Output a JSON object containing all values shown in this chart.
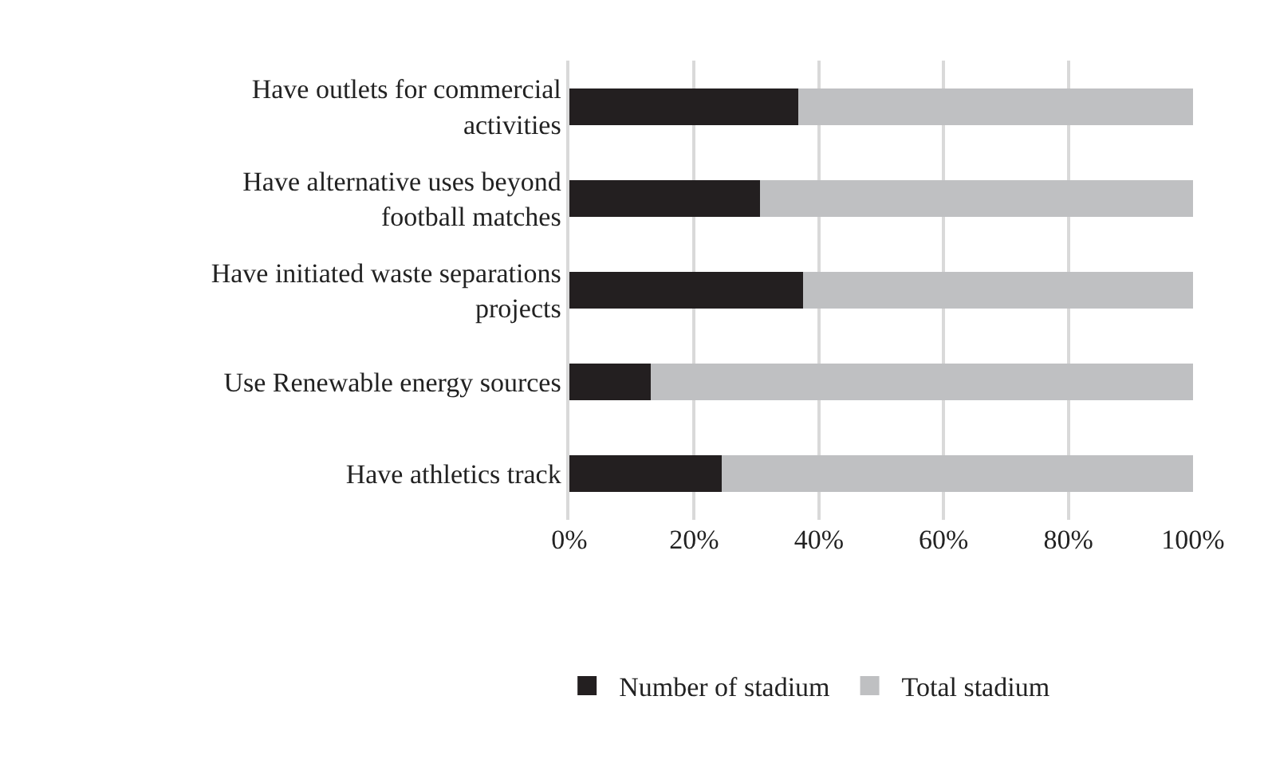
{
  "chart_data": {
    "type": "bar",
    "orientation": "horizontal",
    "stacked": true,
    "categories": [
      "Have outlets for commercial\nactivities",
      "Have alternative uses beyond\nfootball matches",
      "Have initiated waste separations\nprojects",
      "Use Renewable energy sources",
      "Have athletics track"
    ],
    "series": [
      {
        "name": "Number of stadium",
        "color": "#231f20",
        "values": [
          36.7,
          30.6,
          37.5,
          13.0,
          24.4
        ]
      },
      {
        "name": "Total stadium",
        "color": "#bfc0c2",
        "values": [
          63.3,
          69.4,
          62.5,
          87.0,
          75.6
        ]
      }
    ],
    "xlim": [
      0,
      100
    ],
    "xticks": [
      {
        "value": 0,
        "label": "0%"
      },
      {
        "value": 20,
        "label": "20%"
      },
      {
        "value": 40,
        "label": "40%"
      },
      {
        "value": 60,
        "label": "60%"
      },
      {
        "value": 80,
        "label": "80%"
      },
      {
        "value": 100,
        "label": "100%"
      }
    ],
    "grid": "x",
    "legend": "bottom"
  }
}
